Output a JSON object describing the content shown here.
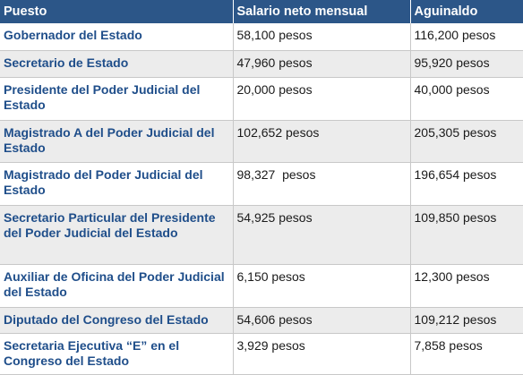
{
  "table": {
    "headers": [
      "Puesto",
      "Salario neto mensual",
      "Aguinaldo"
    ],
    "rows": [
      {
        "puesto": "Gobernador del Estado",
        "salario": "58,100 pesos",
        "aguinaldo": "116,200 pesos"
      },
      {
        "puesto": "Secretario de Estado",
        "salario": "47,960 pesos",
        "aguinaldo": "95,920 pesos"
      },
      {
        "puesto": "Presidente del Poder Judicial del Estado",
        "salario": "20,000 pesos",
        "aguinaldo": "40,000 pesos"
      },
      {
        "puesto": "Magistrado A del Poder Judicial del Estado",
        "salario": "102,652 pesos",
        "aguinaldo": "205,305 pesos"
      },
      {
        "puesto": "Magistrado del Poder Judicial del Estado",
        "salario": "98,327  pesos",
        "aguinaldo": "196,654 pesos"
      },
      {
        "puesto": "Secretario Particular del Presidente del Poder Judicial del Estado",
        "salario": "54,925 pesos",
        "aguinaldo": "109,850 pesos"
      },
      {
        "puesto": "Auxiliar de Oficina del Poder Judicial del Estado",
        "salario": "6,150 pesos",
        "aguinaldo": "12,300 pesos"
      },
      {
        "puesto": "Diputado del Congreso del Estado",
        "salario": "54,606 pesos",
        "aguinaldo": "109,212 pesos"
      },
      {
        "puesto": "Secretaria Ejecutiva “E” en el Congreso del Estado",
        "salario": "3,929 pesos",
        "aguinaldo": "7,858 pesos"
      }
    ]
  },
  "colors": {
    "header_bg": "#2c5688",
    "header_text": "#ffffff",
    "puesto_text": "#1f4e8a",
    "stripe": "#ececec"
  }
}
